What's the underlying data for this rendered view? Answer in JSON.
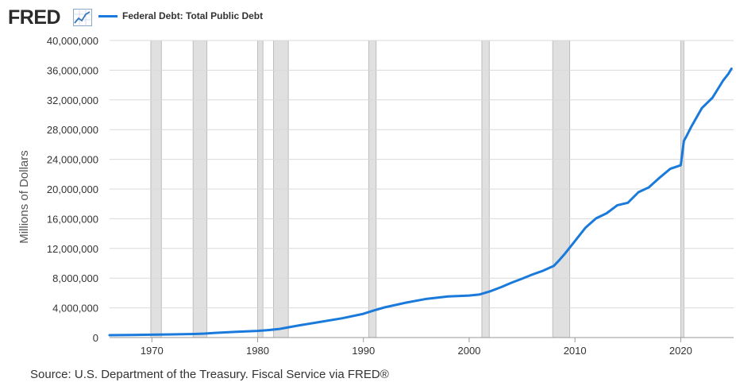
{
  "header": {
    "logo_text": "FRED"
  },
  "legend": {
    "items": [
      {
        "label": "Federal Debt: Total Public Debt",
        "color": "#1a7adc"
      }
    ]
  },
  "footer": {
    "source": "Source: U.S. Department of the Treasury. Fiscal Service via FRED®"
  },
  "chart_data": {
    "type": "line",
    "title": "",
    "ylabel": "Millions of Dollars",
    "xlabel": "",
    "xlim": [
      1966.0,
      2025.0
    ],
    "ylim": [
      0,
      40000000
    ],
    "grid": true,
    "legend_position": "top-left",
    "x_ticks": [
      {
        "value": 1970,
        "label": "1970"
      },
      {
        "value": 1980,
        "label": "1980"
      },
      {
        "value": 1990,
        "label": "1990"
      },
      {
        "value": 2000,
        "label": "2000"
      },
      {
        "value": 2010,
        "label": "2010"
      },
      {
        "value": 2020,
        "label": "2020"
      }
    ],
    "y_ticks": [
      {
        "value": 0,
        "label": "0"
      },
      {
        "value": 4000000,
        "label": "4,000,000"
      },
      {
        "value": 8000000,
        "label": "8,000,000"
      },
      {
        "value": 12000000,
        "label": "12,000,000"
      },
      {
        "value": 16000000,
        "label": "16,000,000"
      },
      {
        "value": 20000000,
        "label": "20,000,000"
      },
      {
        "value": 24000000,
        "label": "24,000,000"
      },
      {
        "value": 28000000,
        "label": "28,000,000"
      },
      {
        "value": 32000000,
        "label": "32,000,000"
      },
      {
        "value": 36000000,
        "label": "36,000,000"
      },
      {
        "value": 40000000,
        "label": "40,000,000"
      }
    ],
    "recessions": [
      [
        1969.9,
        1970.9
      ],
      [
        1973.9,
        1975.2
      ],
      [
        1980.0,
        1980.5
      ],
      [
        1981.5,
        1982.9
      ],
      [
        1990.5,
        1991.2
      ],
      [
        2001.2,
        2001.9
      ],
      [
        2007.9,
        2009.5
      ],
      [
        2020.0,
        2020.3
      ]
    ],
    "series": [
      {
        "name": "Federal Debt: Total Public Debt",
        "color": "#1a7adc",
        "x": [
          1966.0,
          1968.0,
          1970.0,
          1972.0,
          1974.0,
          1975.0,
          1976.0,
          1978.0,
          1980.0,
          1981.0,
          1982.0,
          1983.0,
          1984.0,
          1986.0,
          1988.0,
          1990.0,
          1991.0,
          1992.0,
          1994.0,
          1996.0,
          1998.0,
          2000.0,
          2001.0,
          2002.0,
          2003.0,
          2004.0,
          2005.0,
          2006.0,
          2007.0,
          2008.0,
          2008.5,
          2009.0,
          2010.0,
          2011.0,
          2012.0,
          2013.0,
          2014.0,
          2015.0,
          2016.0,
          2017.0,
          2018.0,
          2019.0,
          2020.0,
          2020.3,
          2020.5,
          2021.0,
          2022.0,
          2023.0,
          2024.0,
          2024.5,
          2024.8
        ],
        "y": [
          320000,
          350000,
          380000,
          430000,
          480000,
          540000,
          630000,
          780000,
          900000,
          1000000,
          1140000,
          1400000,
          1660000,
          2130000,
          2600000,
          3200000,
          3660000,
          4060000,
          4690000,
          5220000,
          5530000,
          5660000,
          5810000,
          6230000,
          6780000,
          7380000,
          7930000,
          8500000,
          9010000,
          9650000,
          10400000,
          11200000,
          13000000,
          14800000,
          16050000,
          16740000,
          17820000,
          18150000,
          19570000,
          20240000,
          21520000,
          22720000,
          23200000,
          26500000,
          27000000,
          28400000,
          30900000,
          32300000,
          34600000,
          35500000,
          36200000
        ]
      }
    ]
  }
}
